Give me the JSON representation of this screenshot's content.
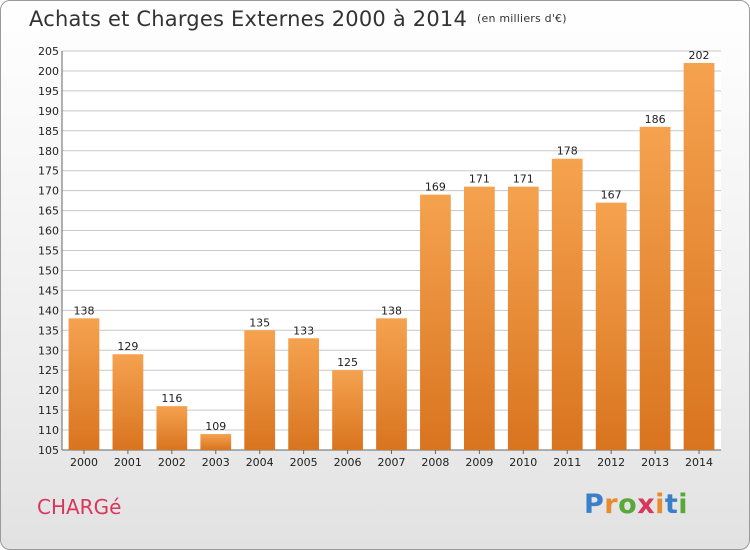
{
  "title": "Achats et Charges Externes 2000 à 2014",
  "unit": "(en milliers d'€)",
  "commune": "CHARGé",
  "logo": {
    "letters": [
      "P",
      "r",
      "o",
      "x",
      "i",
      "t",
      "i"
    ],
    "colors": [
      "#3a7fc9",
      "#e98a2e",
      "#5aa83a",
      "#d9365c",
      "#e98a2e",
      "#3a7fc9",
      "#5aa83a"
    ]
  },
  "colors": {
    "bar_top": "#f5a24f",
    "bar_bottom": "#d9741f",
    "grid": "#c8c8c8",
    "plot_bg": "#ffffff",
    "axis": "#666666"
  },
  "chart_data": {
    "type": "bar",
    "categories": [
      "2000",
      "2001",
      "2002",
      "2003",
      "2004",
      "2005",
      "2006",
      "2007",
      "2008",
      "2009",
      "2010",
      "2011",
      "2012",
      "2013",
      "2014"
    ],
    "values": [
      138,
      129,
      116,
      109,
      135,
      133,
      125,
      138,
      169,
      171,
      171,
      178,
      167,
      186,
      202
    ],
    "ylim": [
      105,
      205
    ],
    "ytick_step": 5,
    "grid": true,
    "title": "Achats et Charges Externes 2000 à 2014",
    "xlabel": "",
    "ylabel": ""
  }
}
